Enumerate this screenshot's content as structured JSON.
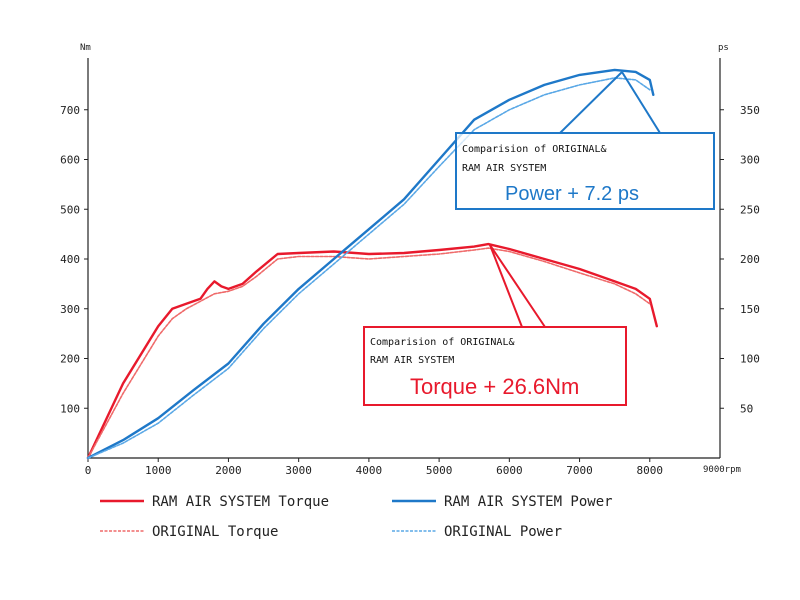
{
  "chart_data": {
    "type": "line",
    "x_unit": "9000rpm",
    "y_left_unit": "Nm",
    "y_right_unit": "ps",
    "x_ticks": [
      "0",
      "1000",
      "2000",
      "3000",
      "4000",
      "5000",
      "6000",
      "7000",
      "8000"
    ],
    "y_left_ticks": [
      "100",
      "200",
      "300",
      "400",
      "500",
      "600",
      "700"
    ],
    "y_right_ticks": [
      "50",
      "100",
      "150",
      "200",
      "250",
      "300",
      "350"
    ],
    "xlim": [
      0,
      9000
    ],
    "ylim_left": [
      0,
      800
    ],
    "ylim_right": [
      0,
      400
    ],
    "grid": false,
    "legend_position": "bottom",
    "series": [
      {
        "name": "RAM AIR SYSTEM Torque",
        "axis": "left",
        "color": "#e8192c",
        "style": "solid",
        "x": [
          0,
          500,
          1000,
          1200,
          1400,
          1600,
          1700,
          1800,
          1900,
          2000,
          2200,
          2400,
          2700,
          3000,
          3500,
          4000,
          4500,
          5000,
          5500,
          5700,
          6000,
          6500,
          7000,
          7500,
          7800,
          8000,
          8100
        ],
        "y": [
          0,
          150,
          265,
          300,
          310,
          320,
          340,
          355,
          345,
          340,
          350,
          375,
          410,
          412,
          415,
          410,
          412,
          418,
          425,
          430,
          420,
          400,
          380,
          355,
          340,
          320,
          265
        ]
      },
      {
        "name": "ORIGINAL Torque",
        "axis": "left",
        "color": "#ef6a6a",
        "style": "dashed",
        "x": [
          0,
          500,
          1000,
          1200,
          1400,
          1600,
          1800,
          2000,
          2200,
          2400,
          2700,
          3000,
          3500,
          4000,
          4500,
          5000,
          5500,
          5700,
          6000,
          6500,
          7000,
          7500,
          7800,
          8000
        ],
        "y": [
          0,
          130,
          245,
          280,
          300,
          315,
          330,
          335,
          345,
          365,
          400,
          405,
          405,
          400,
          405,
          410,
          418,
          422,
          415,
          395,
          372,
          350,
          330,
          310
        ]
      },
      {
        "name": "RAM AIR SYSTEM Power",
        "axis": "right",
        "color": "#1e78c8",
        "style": "solid",
        "x": [
          0,
          500,
          1000,
          1500,
          2000,
          2500,
          3000,
          3500,
          4000,
          4500,
          5000,
          5500,
          6000,
          6500,
          7000,
          7500,
          7800,
          8000,
          8050
        ],
        "y": [
          0,
          18,
          40,
          68,
          95,
          135,
          170,
          200,
          230,
          260,
          300,
          340,
          360,
          375,
          385,
          390,
          388,
          380,
          365
        ]
      },
      {
        "name": "ORIGINAL Power",
        "axis": "right",
        "color": "#5aa8e6",
        "style": "dashed",
        "x": [
          0,
          500,
          1000,
          1500,
          2000,
          2500,
          3000,
          3500,
          4000,
          4500,
          5000,
          5500,
          6000,
          6500,
          7000,
          7500,
          7800,
          8000
        ],
        "y": [
          0,
          15,
          35,
          63,
          90,
          130,
          165,
          195,
          225,
          255,
          293,
          330,
          350,
          365,
          375,
          382,
          380,
          370
        ]
      }
    ],
    "annotations": [
      {
        "id": "power",
        "line1": "Comparision of ORIGINAL&",
        "line2": "RAM AIR SYSTEM",
        "highlight": "Power  + 7.2 ps",
        "color": "#1e78c8"
      },
      {
        "id": "torque",
        "line1": "Comparision of ORIGINAL&",
        "line2": "RAM AIR SYSTEM",
        "highlight": "Torque + 26.6Nm",
        "color": "#e8192c"
      }
    ]
  }
}
